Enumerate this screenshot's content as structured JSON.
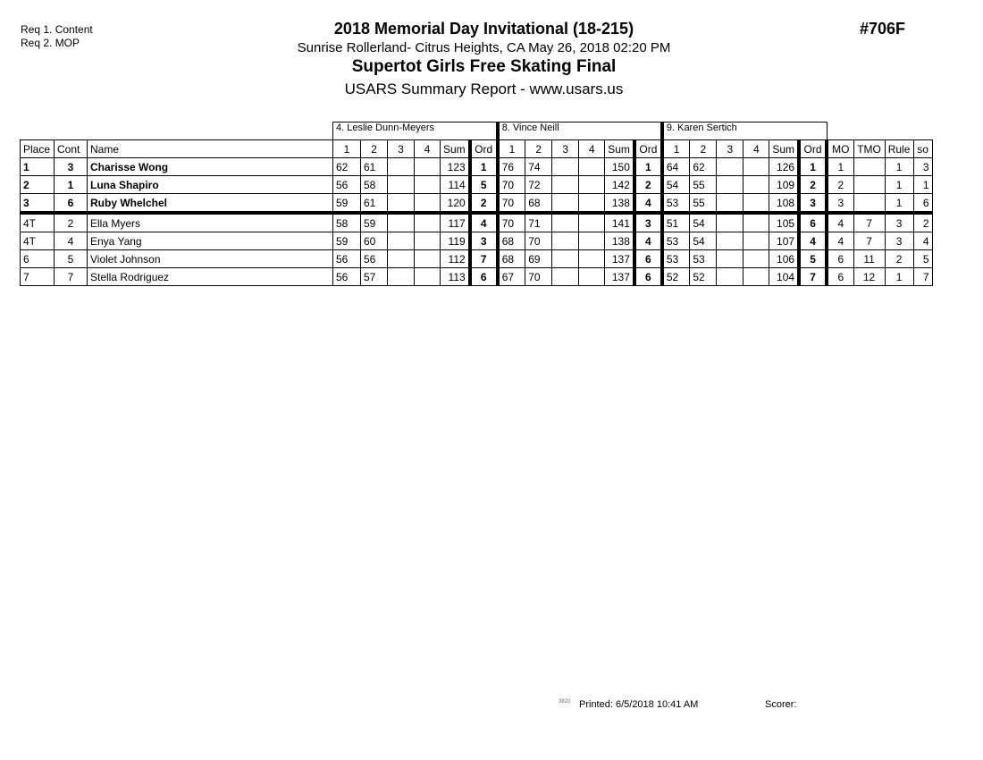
{
  "requirements": [
    "Req 1. Content",
    "Req 2. MOP"
  ],
  "header": {
    "title": "2018 Memorial Day Invitational (18-215)",
    "location": "Sunrise Rollerland- Citrus Heights, CA  May 26, 2018  02:20 PM",
    "event": "Supertot Girls Free Skating Final",
    "report": "USARS Summary Report - www.usars.us",
    "code": "#706F"
  },
  "judges": [
    "4.  Leslie Dunn-Meyers",
    "8.  Vince Neill",
    "9.  Karen Sertich"
  ],
  "columns": {
    "place": "Place",
    "cont": "Cont",
    "name": "Name",
    "judge_cols": [
      "1",
      "2",
      "3",
      "4",
      "Sum",
      "Ord"
    ],
    "mo": "MO",
    "tmo": "TMO",
    "rule": "Rule",
    "so": "so"
  },
  "rows": [
    {
      "place": "1",
      "cont": "3",
      "name": "Charisse Wong",
      "bold": true,
      "j": [
        [
          "62",
          "61",
          "",
          "",
          "123",
          "1"
        ],
        [
          "76",
          "74",
          "",
          "",
          "150",
          "1"
        ],
        [
          "64",
          "62",
          "",
          "",
          "126",
          "1"
        ]
      ],
      "mo": "1",
      "tmo": "",
      "rule": "1",
      "so": "3"
    },
    {
      "place": "2",
      "cont": "1",
      "name": "Luna Shapiro",
      "bold": true,
      "j": [
        [
          "56",
          "58",
          "",
          "",
          "114",
          "5"
        ],
        [
          "70",
          "72",
          "",
          "",
          "142",
          "2"
        ],
        [
          "54",
          "55",
          "",
          "",
          "109",
          "2"
        ]
      ],
      "mo": "2",
      "tmo": "",
      "rule": "1",
      "so": "1"
    },
    {
      "place": "3",
      "cont": "6",
      "name": "Ruby Whelchel",
      "bold": true,
      "j": [
        [
          "59",
          "61",
          "",
          "",
          "120",
          "2"
        ],
        [
          "70",
          "68",
          "",
          "",
          "138",
          "4"
        ],
        [
          "53",
          "55",
          "",
          "",
          "108",
          "3"
        ]
      ],
      "mo": "3",
      "tmo": "",
      "rule": "1",
      "so": "6"
    },
    {
      "place": "4T",
      "cont": "2",
      "name": "Ella Myers",
      "bold": false,
      "j": [
        [
          "58",
          "59",
          "",
          "",
          "117",
          "4"
        ],
        [
          "70",
          "71",
          "",
          "",
          "141",
          "3"
        ],
        [
          "51",
          "54",
          "",
          "",
          "105",
          "6"
        ]
      ],
      "mo": "4",
      "tmo": "7",
      "rule": "3",
      "so": "2"
    },
    {
      "place": "4T",
      "cont": "4",
      "name": "Enya Yang",
      "bold": false,
      "j": [
        [
          "59",
          "60",
          "",
          "",
          "119",
          "3"
        ],
        [
          "68",
          "70",
          "",
          "",
          "138",
          "4"
        ],
        [
          "53",
          "54",
          "",
          "",
          "107",
          "4"
        ]
      ],
      "mo": "4",
      "tmo": "7",
      "rule": "3",
      "so": "4"
    },
    {
      "place": "6",
      "cont": "5",
      "name": "Violet Johnson",
      "bold": false,
      "j": [
        [
          "56",
          "56",
          "",
          "",
          "112",
          "7"
        ],
        [
          "68",
          "69",
          "",
          "",
          "137",
          "6"
        ],
        [
          "53",
          "53",
          "",
          "",
          "106",
          "5"
        ]
      ],
      "mo": "6",
      "tmo": "11",
      "rule": "2",
      "so": "5"
    },
    {
      "place": "7",
      "cont": "7",
      "name": "Stella Rodriguez",
      "bold": false,
      "j": [
        [
          "56",
          "57",
          "",
          "",
          "113",
          "6"
        ],
        [
          "67",
          "70",
          "",
          "",
          "137",
          "6"
        ],
        [
          "52",
          "52",
          "",
          "",
          "104",
          "7"
        ]
      ],
      "mo": "6",
      "tmo": "12",
      "rule": "1",
      "so": "7"
    }
  ],
  "footer": {
    "page_code": "3820",
    "printed": "Printed:  6/5/2018  10:41 AM",
    "scorer": "Scorer:"
  }
}
